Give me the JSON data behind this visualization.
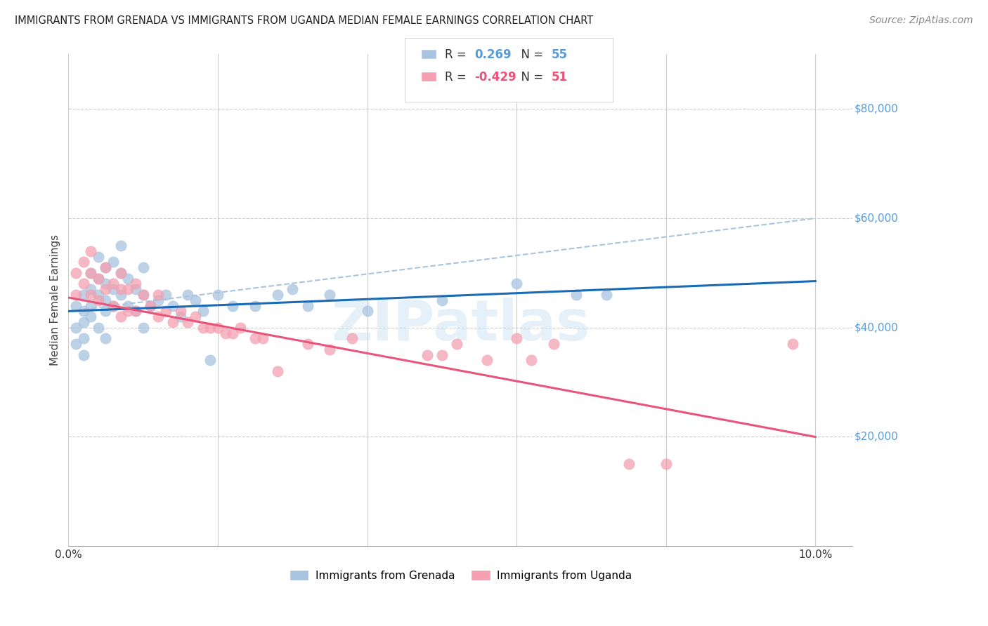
{
  "title": "IMMIGRANTS FROM GRENADA VS IMMIGRANTS FROM UGANDA MEDIAN FEMALE EARNINGS CORRELATION CHART",
  "source": "Source: ZipAtlas.com",
  "ylabel": "Median Female Earnings",
  "xlim": [
    0.0,
    0.105
  ],
  "ylim": [
    0,
    90000
  ],
  "yticks": [
    20000,
    40000,
    60000,
    80000
  ],
  "ytick_labels": [
    "$20,000",
    "$40,000",
    "$60,000",
    "$80,000"
  ],
  "xticks": [
    0.0,
    0.02,
    0.04,
    0.06,
    0.08,
    0.1
  ],
  "xtick_labels": [
    "0.0%",
    "",
    "",
    "",
    "",
    "10.0%"
  ],
  "grenada_color": "#a8c4e0",
  "uganda_color": "#f4a0b0",
  "grenada_line_color": "#1a6bb5",
  "uganda_line_color": "#e8547a",
  "watermark": "ZIPatlas",
  "background_color": "#ffffff",
  "grenada_line": [
    0.0,
    43000,
    0.1,
    48500
  ],
  "uganda_line": [
    0.0,
    45500,
    0.1,
    20000
  ],
  "dashed_line": [
    0.0,
    43000,
    0.1,
    60000
  ],
  "grenada_x": [
    0.001,
    0.001,
    0.001,
    0.002,
    0.002,
    0.002,
    0.002,
    0.002,
    0.003,
    0.003,
    0.003,
    0.003,
    0.004,
    0.004,
    0.004,
    0.004,
    0.005,
    0.005,
    0.005,
    0.005,
    0.005,
    0.006,
    0.006,
    0.006,
    0.007,
    0.007,
    0.007,
    0.008,
    0.008,
    0.009,
    0.009,
    0.01,
    0.01,
    0.01,
    0.011,
    0.012,
    0.013,
    0.014,
    0.015,
    0.016,
    0.017,
    0.018,
    0.019,
    0.02,
    0.022,
    0.025,
    0.028,
    0.03,
    0.032,
    0.035,
    0.04,
    0.05,
    0.06,
    0.068,
    0.072
  ],
  "grenada_y": [
    44000,
    40000,
    37000,
    46000,
    43000,
    41000,
    38000,
    35000,
    50000,
    47000,
    44000,
    42000,
    53000,
    49000,
    46000,
    40000,
    51000,
    48000,
    45000,
    43000,
    38000,
    52000,
    47000,
    44000,
    55000,
    50000,
    46000,
    49000,
    44000,
    47000,
    43000,
    51000,
    46000,
    40000,
    44000,
    45000,
    46000,
    44000,
    42000,
    46000,
    45000,
    43000,
    34000,
    46000,
    44000,
    44000,
    46000,
    47000,
    44000,
    46000,
    43000,
    45000,
    48000,
    46000,
    46000
  ],
  "uganda_x": [
    0.001,
    0.001,
    0.002,
    0.002,
    0.003,
    0.003,
    0.003,
    0.004,
    0.004,
    0.005,
    0.005,
    0.006,
    0.006,
    0.007,
    0.007,
    0.007,
    0.008,
    0.008,
    0.009,
    0.009,
    0.01,
    0.011,
    0.012,
    0.012,
    0.013,
    0.014,
    0.015,
    0.016,
    0.017,
    0.018,
    0.019,
    0.02,
    0.021,
    0.022,
    0.023,
    0.025,
    0.026,
    0.028,
    0.032,
    0.035,
    0.038,
    0.048,
    0.05,
    0.052,
    0.056,
    0.06,
    0.062,
    0.065,
    0.075,
    0.08,
    0.097
  ],
  "uganda_y": [
    50000,
    46000,
    52000,
    48000,
    54000,
    50000,
    46000,
    49000,
    45000,
    51000,
    47000,
    48000,
    44000,
    50000,
    47000,
    42000,
    47000,
    43000,
    48000,
    43000,
    46000,
    44000,
    46000,
    42000,
    43000,
    41000,
    43000,
    41000,
    42000,
    40000,
    40000,
    40000,
    39000,
    39000,
    40000,
    38000,
    38000,
    32000,
    37000,
    36000,
    38000,
    35000,
    35000,
    37000,
    34000,
    38000,
    34000,
    37000,
    15000,
    15000,
    37000
  ]
}
